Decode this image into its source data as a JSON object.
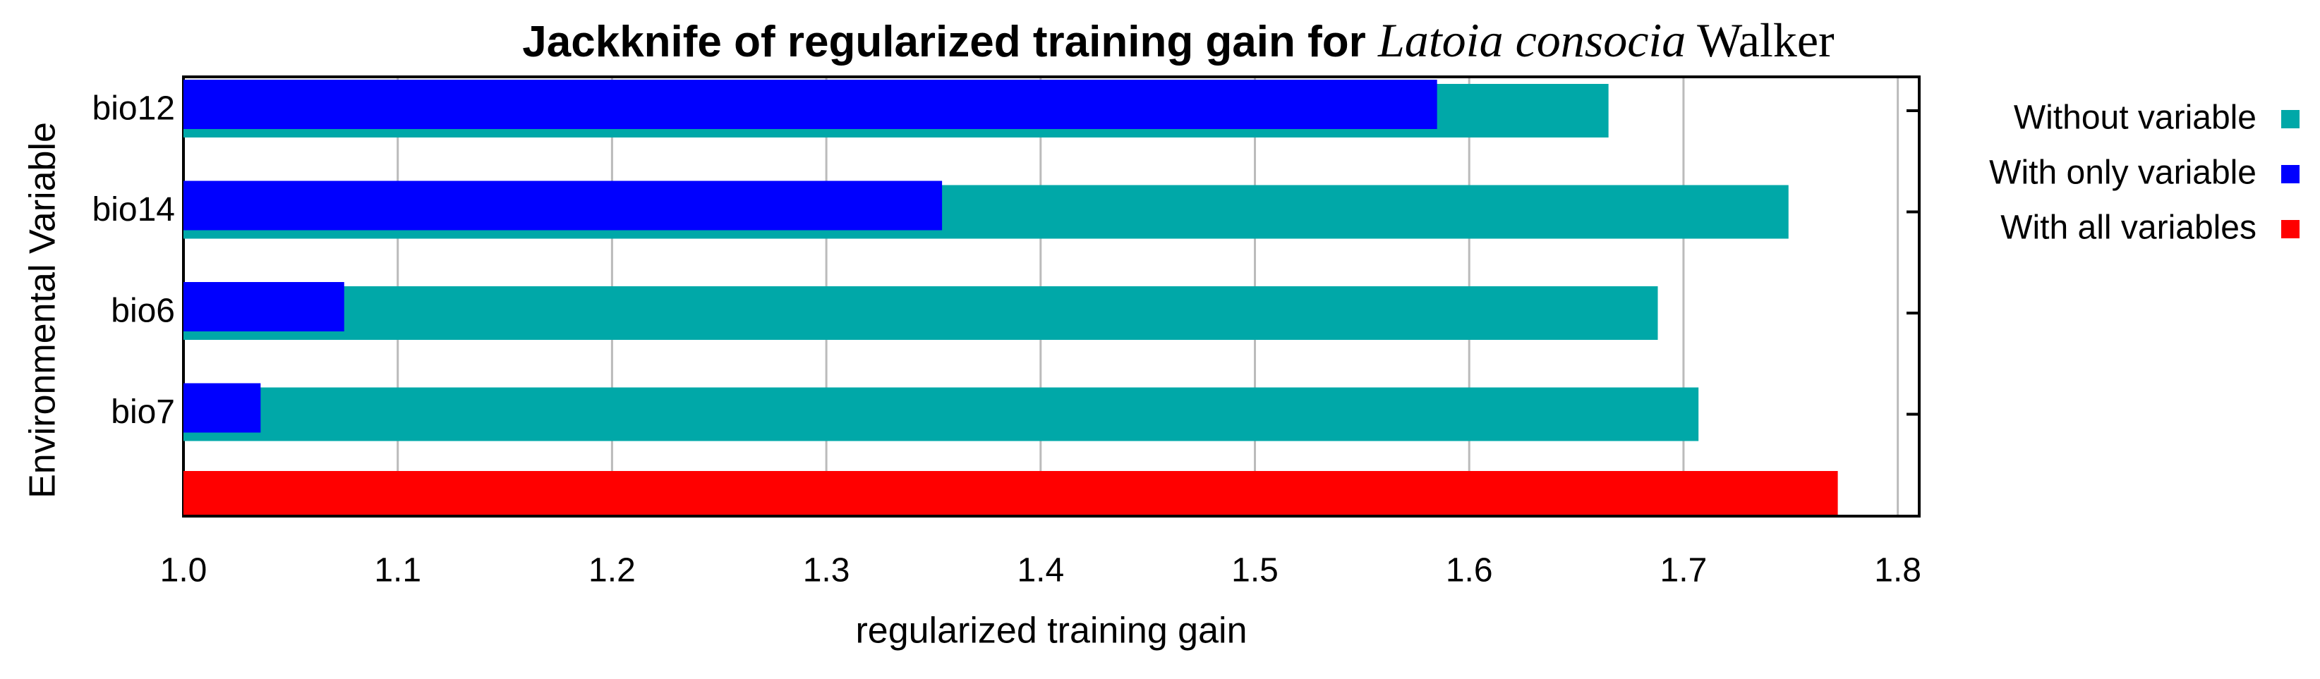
{
  "chart_data": {
    "type": "bar",
    "orientation": "horizontal",
    "title": [
      "Jackknife of regularized training gain for ",
      "Latoia consocia",
      " Walker"
    ],
    "xlabel": "regularized training gain",
    "ylabel": "Environmental Variable",
    "categories": [
      "bio12",
      "bio14",
      "bio6",
      "bio7",
      null
    ],
    "series": [
      {
        "name": "Without variable",
        "color": "#00a8a8",
        "values": [
          1.665,
          1.749,
          1.688,
          1.707,
          null
        ]
      },
      {
        "name": "With only variable",
        "color": "#0000ff",
        "values": [
          1.585,
          1.354,
          1.075,
          1.036,
          null
        ]
      },
      {
        "name": "With all variables",
        "color": "#ff0000",
        "values": [
          null,
          null,
          null,
          null,
          1.772
        ]
      }
    ],
    "xlim": [
      1.0,
      1.81
    ],
    "xticks": [
      {
        "value": 1,
        "label": "1.0"
      },
      1.1,
      1.2,
      1.3,
      1.4,
      1.5,
      1.6,
      1.7,
      1.8
    ],
    "grid": true,
    "legend": "right"
  }
}
